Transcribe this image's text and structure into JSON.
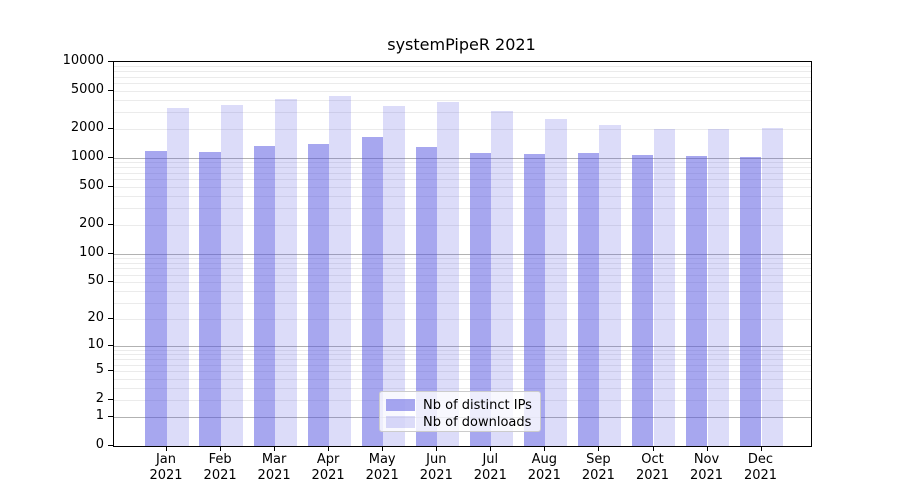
{
  "title": "systemPipeR 2021",
  "chart_data": {
    "type": "bar",
    "title": "systemPipeR 2021",
    "categories": [
      "Jan 2021",
      "Feb 2021",
      "Mar 2021",
      "Apr 2021",
      "May 2021",
      "Jun 2021",
      "Jul 2021",
      "Aug 2021",
      "Sep 2021",
      "Oct 2021",
      "Nov 2021",
      "Dec 2021"
    ],
    "series": [
      {
        "name": "Nb of distinct IPs",
        "color": "rgba(80,80,224,0.5)",
        "values": [
          1190,
          1160,
          1320,
          1390,
          1640,
          1310,
          1140,
          1100,
          1120,
          1070,
          1060,
          1030
        ]
      },
      {
        "name": "Nb of downloads",
        "color": "rgba(80,80,224,0.2)",
        "values": [
          3320,
          3530,
          4170,
          4480,
          3470,
          3850,
          3100,
          2560,
          2220,
          1990,
          2000,
          2050
        ]
      }
    ],
    "xlabel": "",
    "ylabel": "",
    "yscale": "log1p",
    "ylim": [
      0,
      10000
    ],
    "yticks": [
      0,
      1,
      2,
      5,
      10,
      20,
      50,
      100,
      200,
      500,
      1000,
      2000,
      5000,
      10000
    ],
    "grid": {
      "on": true,
      "major_at": [
        1,
        10,
        100,
        1000
      ],
      "minor_decades": [
        1,
        10,
        100,
        1000
      ],
      "major_color": "#b2b2b2",
      "minor_color": "#ebebeb"
    },
    "legend_position": "lower center"
  }
}
